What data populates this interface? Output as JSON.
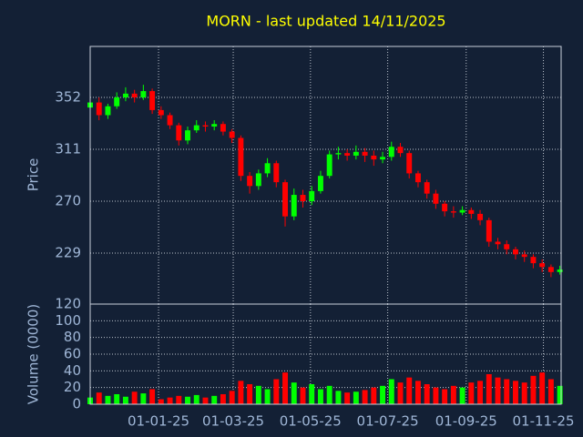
{
  "chart_data": [
    {
      "type": "candlestick",
      "title": "MORN - last updated 14/11/2025",
      "ylabel": "Price",
      "up_color": "#00ff00",
      "down_color": "#ff0000",
      "grid": true,
      "x": [
        "2024-11-08",
        "2024-11-15",
        "2024-11-22",
        "2024-11-29",
        "2024-12-06",
        "2024-12-13",
        "2024-12-20",
        "2024-12-27",
        "2025-01-03",
        "2025-01-10",
        "2025-01-17",
        "2025-01-24",
        "2025-01-31",
        "2025-02-07",
        "2025-02-14",
        "2025-02-21",
        "2025-02-28",
        "2025-03-07",
        "2025-03-14",
        "2025-03-21",
        "2025-03-28",
        "2025-04-04",
        "2025-04-11",
        "2025-04-18",
        "2025-04-25",
        "2025-05-02",
        "2025-05-09",
        "2025-05-16",
        "2025-05-23",
        "2025-05-30",
        "2025-06-06",
        "2025-06-13",
        "2025-06-20",
        "2025-06-27",
        "2025-07-04",
        "2025-07-11",
        "2025-07-18",
        "2025-07-25",
        "2025-08-01",
        "2025-08-08",
        "2025-08-15",
        "2025-08-22",
        "2025-08-29",
        "2025-09-05",
        "2025-09-12",
        "2025-09-19",
        "2025-09-26",
        "2025-10-03",
        "2025-10-10",
        "2025-10-17",
        "2025-10-24",
        "2025-10-31",
        "2025-11-07",
        "2025-11-14"
      ],
      "open": [
        344,
        348,
        338,
        345,
        352,
        355,
        352,
        357,
        342,
        338,
        330,
        318,
        326,
        330,
        329,
        331,
        325,
        320,
        290,
        282,
        292,
        300,
        285,
        258,
        275,
        270,
        278,
        290,
        307,
        308,
        306,
        309,
        306,
        303,
        305,
        313,
        308,
        292,
        285,
        276,
        268,
        262,
        261,
        263,
        260,
        255,
        238,
        236,
        232,
        228,
        226,
        221,
        218,
        214
      ],
      "high": [
        351,
        352,
        347,
        356,
        360,
        358,
        362,
        359,
        345,
        340,
        332,
        329,
        334,
        333,
        334,
        333,
        327,
        322,
        293,
        295,
        304,
        302,
        287,
        280,
        279,
        282,
        294,
        310,
        313,
        311,
        314,
        312,
        310,
        309,
        317,
        316,
        310,
        294,
        287,
        279,
        270,
        266,
        266,
        265,
        263,
        257,
        241,
        239,
        234,
        231,
        228,
        224,
        220,
        219
      ],
      "low": [
        340,
        334,
        335,
        343,
        349,
        348,
        350,
        339,
        335,
        327,
        314,
        315,
        324,
        325,
        326,
        322,
        316,
        286,
        276,
        279,
        289,
        281,
        250,
        255,
        265,
        267,
        276,
        288,
        303,
        302,
        303,
        301,
        298,
        300,
        302,
        305,
        288,
        281,
        272,
        264,
        258,
        257,
        259,
        256,
        251,
        234,
        232,
        228,
        224,
        222,
        217,
        214,
        210,
        212
      ],
      "close": [
        348,
        338,
        345,
        352,
        355,
        352,
        357,
        342,
        338,
        330,
        318,
        326,
        330,
        329,
        331,
        325,
        320,
        290,
        282,
        292,
        300,
        285,
        258,
        275,
        270,
        278,
        290,
        307,
        308,
        306,
        309,
        306,
        303,
        305,
        313,
        308,
        292,
        285,
        276,
        268,
        262,
        261,
        263,
        260,
        255,
        238,
        236,
        232,
        228,
        226,
        221,
        218,
        214,
        216
      ],
      "xlim": [
        "2024-11-08",
        "2025-11-15"
      ],
      "xticks": [
        {
          "value": "2025-01-01",
          "label": "01-01-25"
        },
        {
          "value": "2025-03-01",
          "label": "01-03-25"
        },
        {
          "value": "2025-05-01",
          "label": "01-05-25"
        },
        {
          "value": "2025-07-01",
          "label": "01-07-25"
        },
        {
          "value": "2025-09-01",
          "label": "01-09-25"
        },
        {
          "value": "2025-11-01",
          "label": "01-11-25"
        }
      ],
      "ylim": [
        188.7,
        392.3
      ],
      "yticks": [
        229,
        270,
        311,
        352
      ]
    },
    {
      "type": "bar",
      "ylabel": "Volume (0000)",
      "grid": true,
      "values": [
        8,
        14,
        10,
        12,
        9,
        15,
        13,
        18,
        6,
        8,
        10,
        9,
        11,
        8,
        10,
        12,
        16,
        28,
        24,
        22,
        18,
        30,
        38,
        26,
        20,
        24,
        18,
        22,
        16,
        14,
        15,
        17,
        20,
        22,
        30,
        26,
        32,
        28,
        24,
        20,
        18,
        22,
        20,
        26,
        28,
        36,
        32,
        30,
        28,
        26,
        34,
        38,
        30,
        22
      ],
      "ylim": [
        0,
        120
      ],
      "yticks": [
        0,
        20,
        40,
        60,
        80,
        100,
        120
      ]
    }
  ]
}
